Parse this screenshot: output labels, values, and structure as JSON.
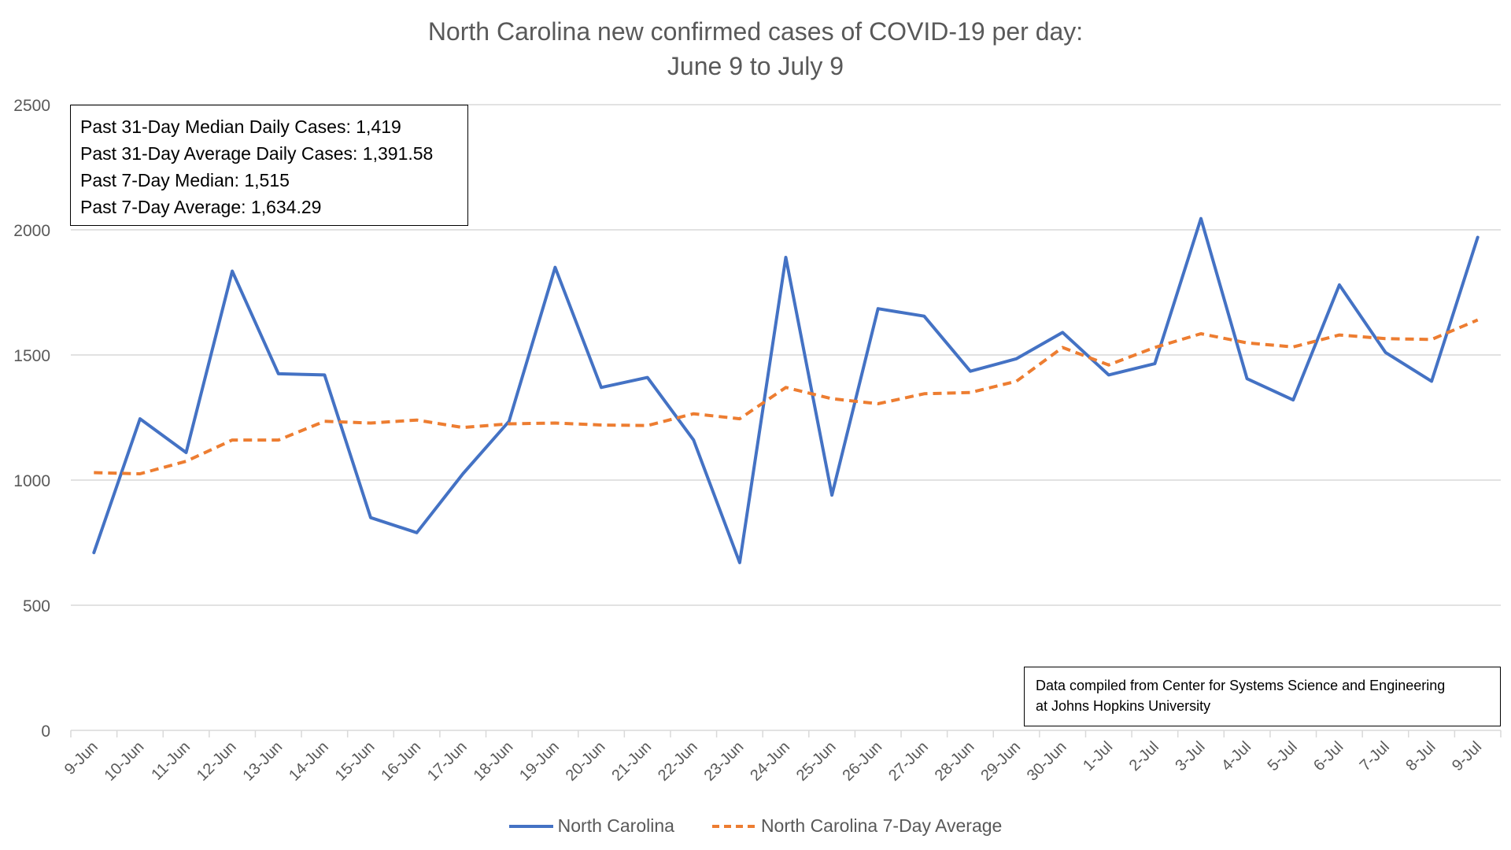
{
  "chart_data": {
    "type": "line",
    "title": "North Carolina new confirmed cases of COVID-19 per day:",
    "subtitle": "June 9 to July 9",
    "categories": [
      "9-Jun",
      "10-Jun",
      "11-Jun",
      "12-Jun",
      "13-Jun",
      "14-Jun",
      "15-Jun",
      "16-Jun",
      "17-Jun",
      "18-Jun",
      "19-Jun",
      "20-Jun",
      "21-Jun",
      "22-Jun",
      "23-Jun",
      "24-Jun",
      "25-Jun",
      "26-Jun",
      "27-Jun",
      "28-Jun",
      "29-Jun",
      "30-Jun",
      "1-Jul",
      "2-Jul",
      "3-Jul",
      "4-Jul",
      "5-Jul",
      "6-Jul",
      "7-Jul",
      "8-Jul",
      "9-Jul"
    ],
    "series": [
      {
        "name": "North Carolina",
        "color": "#4472C4",
        "style": "solid",
        "values": [
          710,
          1245,
          1110,
          1835,
          1425,
          1420,
          850,
          790,
          1025,
          1235,
          1850,
          1370,
          1410,
          1160,
          670,
          1890,
          940,
          1685,
          1655,
          1435,
          1485,
          1590,
          1420,
          1465,
          2045,
          1405,
          1320,
          1780,
          1510,
          1395,
          1970
        ]
      },
      {
        "name": "North Carolina 7-Day Average",
        "color": "#ED7D31",
        "style": "dashed",
        "values": [
          1030,
          1025,
          1075,
          1160,
          1160,
          1235,
          1228,
          1240,
          1210,
          1225,
          1228,
          1220,
          1218,
          1265,
          1245,
          1370,
          1325,
          1305,
          1345,
          1350,
          1395,
          1530,
          1460,
          1530,
          1585,
          1548,
          1532,
          1580,
          1565,
          1562,
          1640
        ]
      }
    ],
    "ylim": [
      0,
      2500
    ],
    "yticks": [
      0,
      500,
      1000,
      1500,
      2000,
      2500
    ],
    "grid": true,
    "legend": "bottom"
  },
  "stats_box": {
    "line1": "Past 31-Day Median Daily Cases: 1,419",
    "line2": "Past 31-Day Average Daily Cases: 1,391.58",
    "line3": "Past 7-Day Median: 1,515",
    "line4": "Past 7-Day Average: 1,634.29"
  },
  "source_note": {
    "line1": "Data compiled from Center for Systems Science and Engineering",
    "line2": "at Johns Hopkins University"
  }
}
